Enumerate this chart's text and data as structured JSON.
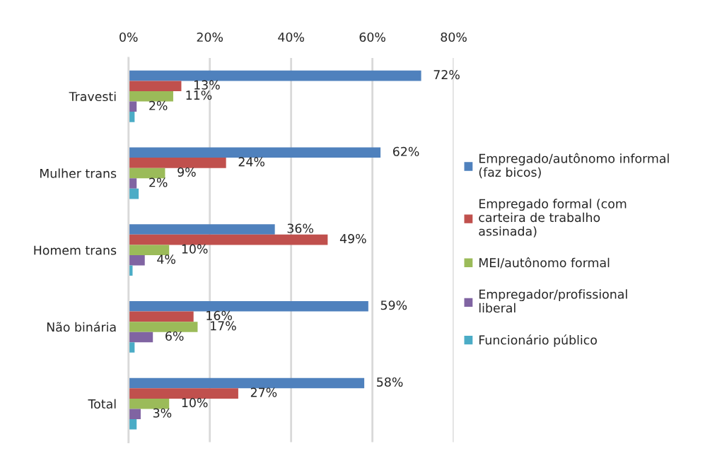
{
  "chart_data": {
    "type": "bar",
    "orientation": "horizontal",
    "categories": [
      "Travesti",
      "Mulher trans",
      "Homem trans",
      "Não binária",
      "Total"
    ],
    "series": [
      {
        "name": "Empregado/autônomo informal (faz bicos)",
        "color": "#4f81bd",
        "values": [
          72,
          62,
          36,
          59,
          58
        ],
        "value_labels": [
          "72%",
          "62%",
          "36%",
          "59%",
          "58%"
        ]
      },
      {
        "name": "Empregado formal (com carteira de trabalho assinada)",
        "color": "#c0504d",
        "values": [
          13,
          24,
          49,
          16,
          27
        ],
        "value_labels": [
          "13%",
          "24%",
          "49%",
          "16%",
          "27%"
        ]
      },
      {
        "name": "MEI/autônomo formal",
        "color": "#9bbb59",
        "values": [
          11,
          9,
          10,
          17,
          10
        ],
        "value_labels": [
          "11%",
          "9%",
          "10%",
          "17%",
          "10%"
        ]
      },
      {
        "name": "Empregador/profissional liberal",
        "color": "#8064a2",
        "values": [
          2,
          2,
          4,
          6,
          3
        ],
        "value_labels": [
          "2%",
          "2%",
          "4%",
          "6%",
          "3%"
        ]
      },
      {
        "name": "Funcionário público",
        "color": "#4bacc6",
        "values": [
          1.5,
          2.5,
          1,
          1.5,
          2
        ]
      }
    ],
    "xlim": [
      0,
      80
    ],
    "xticks": [
      {
        "value": 0,
        "label": "0%"
      },
      {
        "value": 20,
        "label": "20%"
      },
      {
        "value": 40,
        "label": "40%"
      },
      {
        "value": 60,
        "label": "60%"
      },
      {
        "value": 80,
        "label": "80%"
      }
    ],
    "grid": "x",
    "legend": "right"
  }
}
